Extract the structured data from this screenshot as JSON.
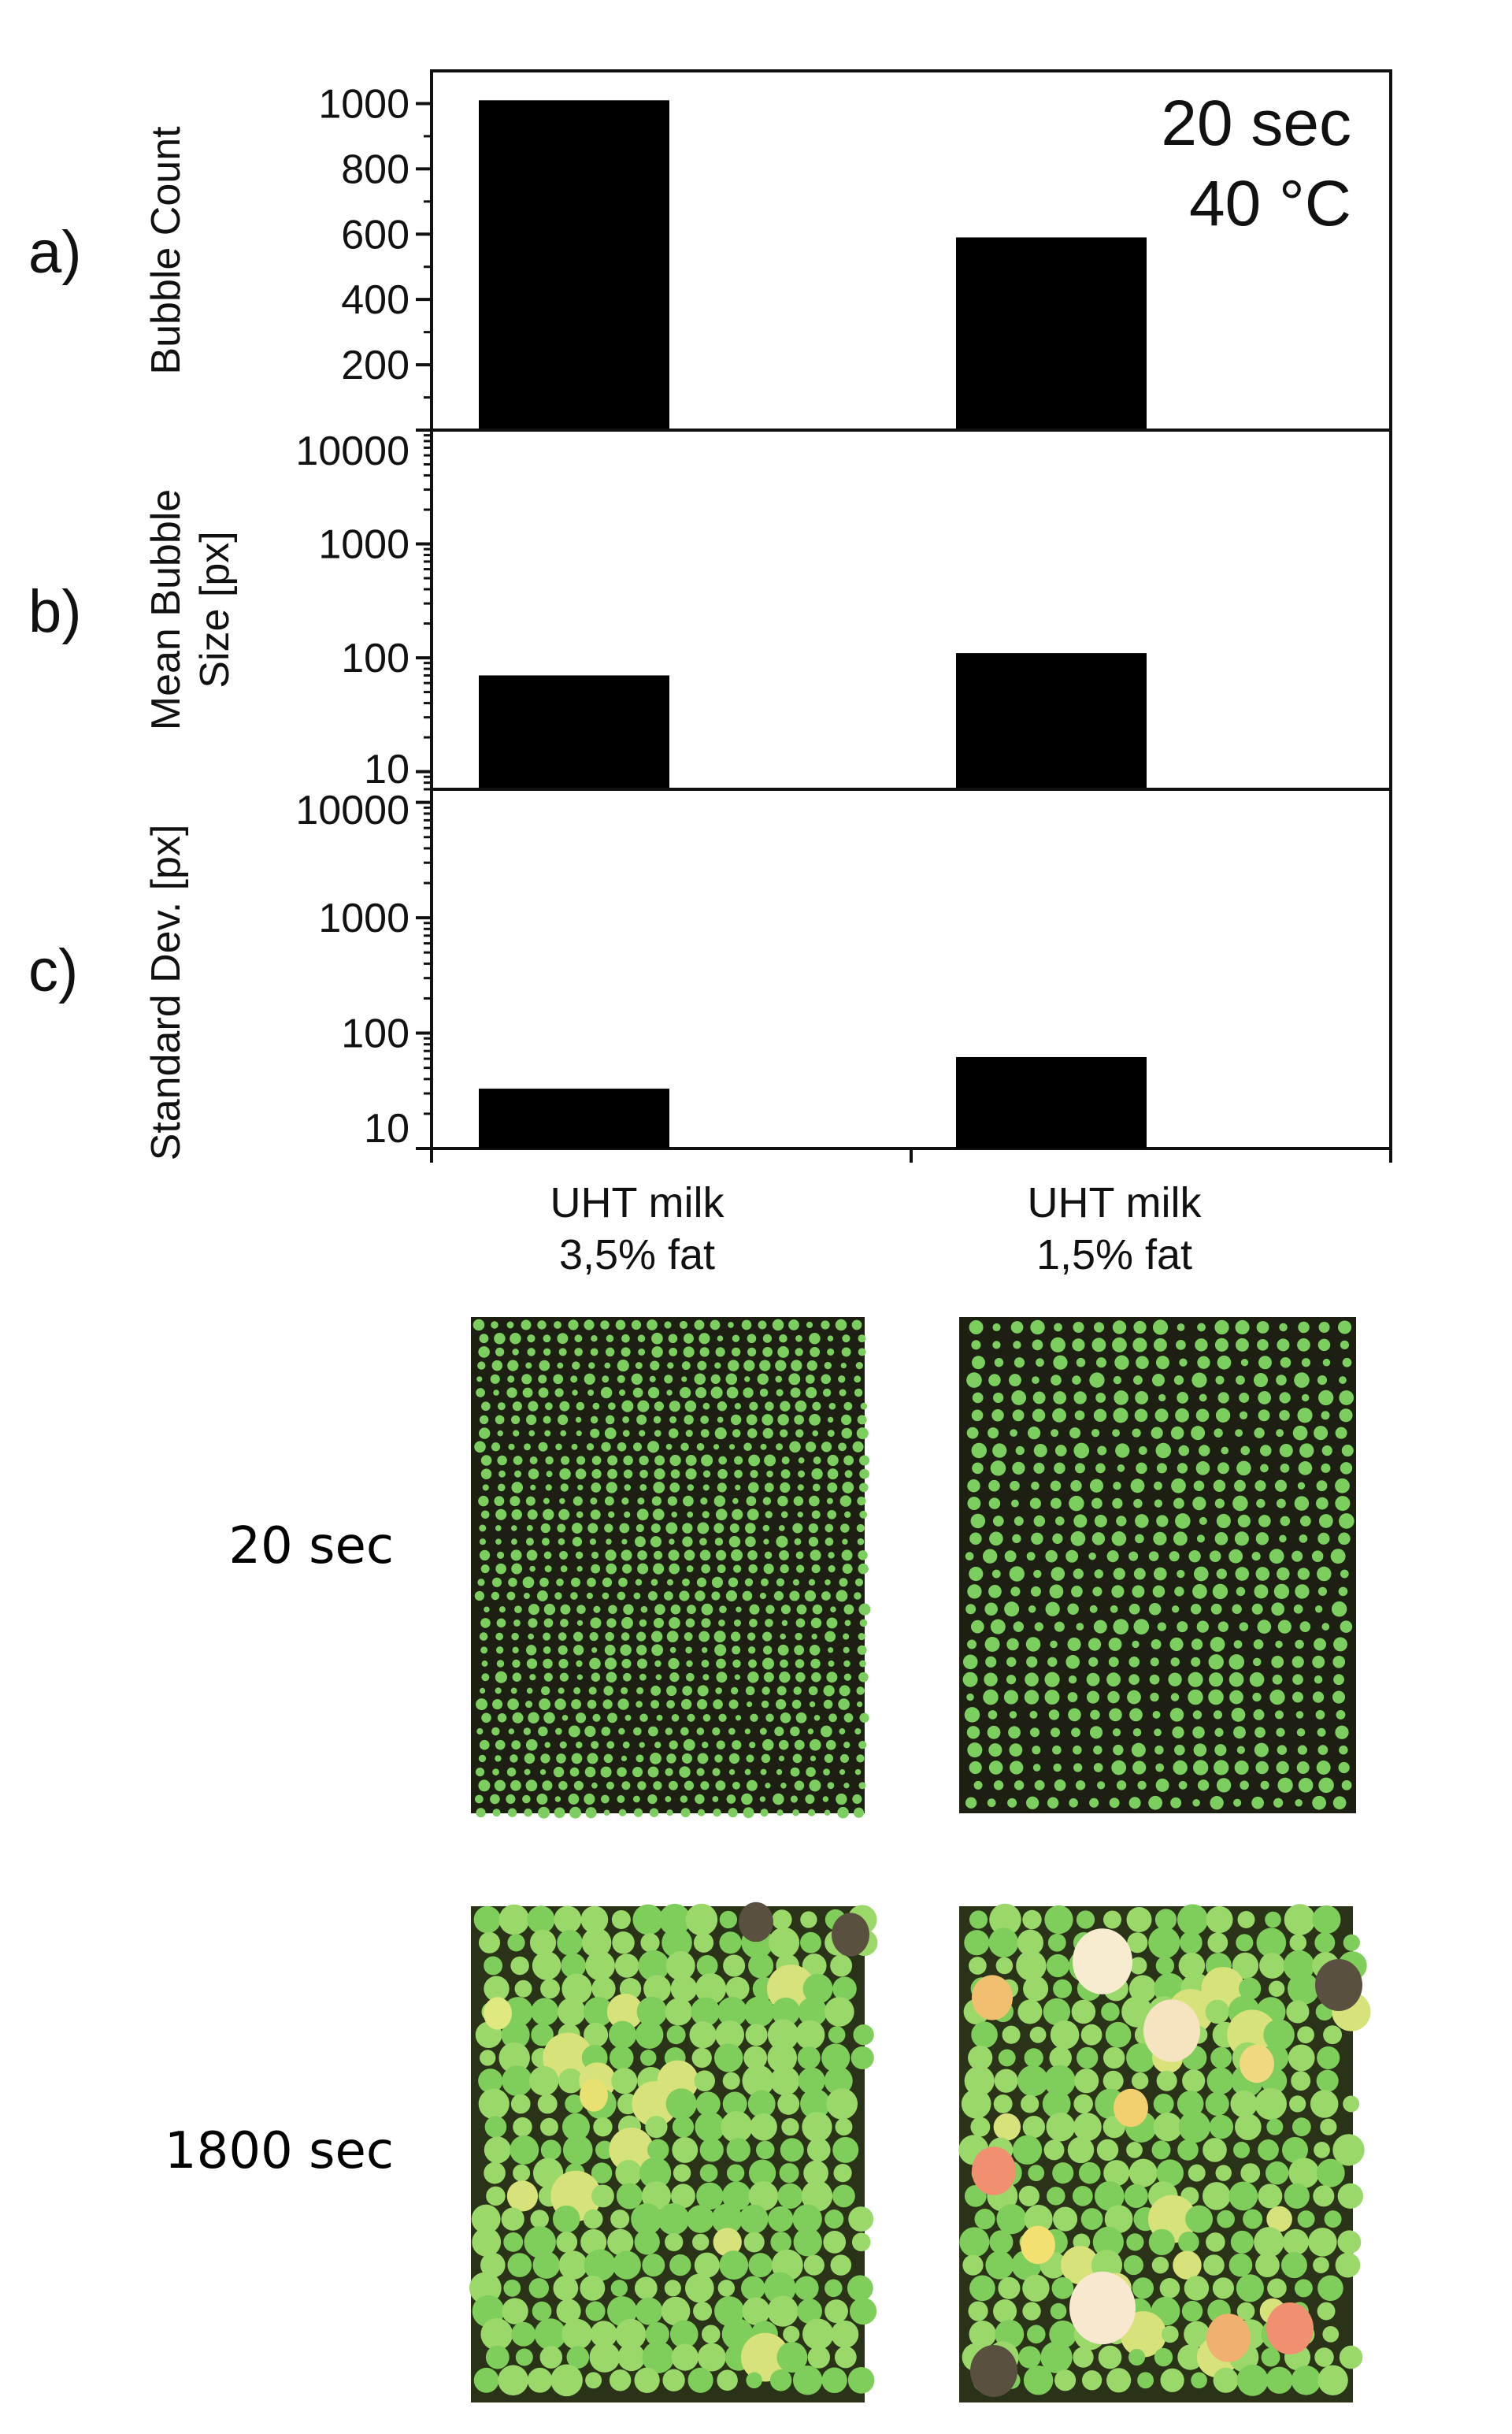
{
  "chart_data": [
    {
      "type": "bar",
      "panel_label": "a)",
      "ylabel": "Bubble Count",
      "categories": [
        "UHT milk 3,5% fat",
        "UHT milk 1,5% fat"
      ],
      "values": [
        1010,
        590
      ],
      "yscale": "linear",
      "ylim": [
        0,
        1100
      ],
      "yticks": [
        200,
        400,
        600,
        800,
        1000
      ],
      "ytick_labels": [
        "200",
        "400",
        "600",
        "800",
        "1000"
      ],
      "annotation": [
        "20 sec",
        "40 °C"
      ]
    },
    {
      "type": "bar",
      "panel_label": "b)",
      "ylabel": [
        "Mean Bubble",
        "Size [px]"
      ],
      "categories": [
        "UHT milk 3,5% fat",
        "UHT milk 1,5% fat"
      ],
      "values": [
        70,
        110
      ],
      "yscale": "log",
      "ylim": [
        7,
        10000
      ],
      "yticks": [
        10,
        100,
        1000,
        10000
      ],
      "ytick_labels": [
        "10",
        "100",
        "1000",
        "10000"
      ]
    },
    {
      "type": "bar",
      "panel_label": "c)",
      "ylabel": "Standard Dev. [px]",
      "categories": [
        "UHT milk 3,5% fat",
        "UHT milk 1,5% fat"
      ],
      "values": [
        33,
        62
      ],
      "yscale": "log",
      "ylim": [
        10,
        13000
      ],
      "yticks": [
        10,
        100,
        1000,
        10000
      ],
      "ytick_labels": [
        "10",
        "100",
        "1000",
        "10000"
      ]
    }
  ],
  "x_labels": [
    [
      "UHT milk",
      "3,5% fat"
    ],
    [
      "UHT milk",
      "1,5% fat"
    ]
  ],
  "image_rows": [
    {
      "label": "20 sec"
    },
    {
      "label": "1800 sec"
    }
  ],
  "colors": {
    "bar": "#000000",
    "foam_bg": "#1c1f12",
    "bubble": "#7ccf5e"
  }
}
